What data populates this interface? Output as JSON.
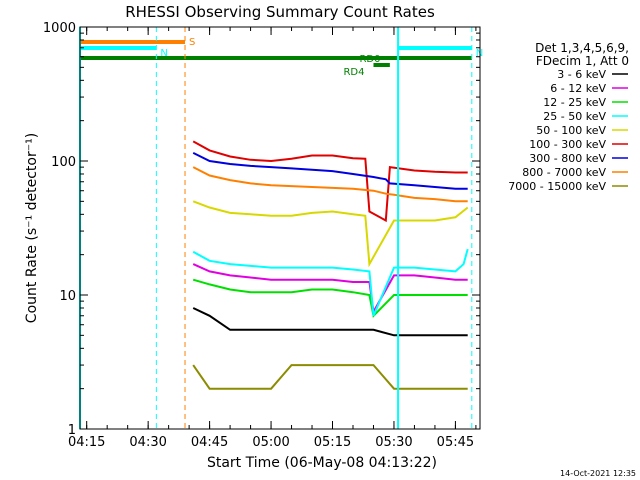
{
  "chart_data": {
    "type": "line",
    "title": "RHESSI Observing Summary Count Rates",
    "xlabel": "Start Time (06-May-08 04:13:22)",
    "ylabel": "Count Rate (s⁻¹ detector⁻¹)",
    "y_scale": "log",
    "ylim": [
      1,
      1000
    ],
    "xlim": [
      "04:13:22",
      "05:51:00"
    ],
    "x_ticks": [
      "04:15",
      "04:30",
      "04:45",
      "05:00",
      "05:15",
      "05:30",
      "05:45"
    ],
    "y_ticks": [
      "1",
      "10",
      "100",
      "1000"
    ],
    "grid": false,
    "legend_placement": "right",
    "legend_header": [
      "Det 1,3,4,5,6,9,",
      "FDecim 1, Att 0"
    ],
    "footer_date": "14-Oct-2021 12:35",
    "series": [
      {
        "name": "3 - 6 keV",
        "color": "#000000",
        "x": [
          "04:41",
          "04:45",
          "04:50",
          "04:55",
          "05:00",
          "05:05",
          "05:10",
          "05:15",
          "05:20",
          "05:25",
          "05:30",
          "05:35",
          "05:40",
          "05:45",
          "05:48"
        ],
        "values": [
          8,
          7,
          5.5,
          5.5,
          5.5,
          5.5,
          5.5,
          5.5,
          5.5,
          5.5,
          5,
          5,
          5,
          5,
          5
        ]
      },
      {
        "name": "6 - 12 keV",
        "color": "#e000e0",
        "x": [
          "04:41",
          "04:45",
          "04:50",
          "04:55",
          "05:00",
          "05:05",
          "05:10",
          "05:15",
          "05:20",
          "05:24",
          "05:25",
          "05:30",
          "05:35",
          "05:40",
          "05:45",
          "05:48"
        ],
        "values": [
          17,
          15,
          14,
          13.5,
          13,
          13,
          13,
          13,
          12.5,
          12.5,
          7.5,
          14,
          14,
          13.5,
          13,
          13
        ]
      },
      {
        "name": "12 - 25 keV",
        "color": "#00e000",
        "x": [
          "04:41",
          "04:45",
          "04:50",
          "04:55",
          "05:00",
          "05:05",
          "05:10",
          "05:15",
          "05:20",
          "05:24",
          "05:25",
          "05:30",
          "05:35",
          "05:40",
          "05:45",
          "05:48"
        ],
        "values": [
          13,
          12,
          11,
          10.5,
          10.5,
          10.5,
          11,
          11,
          10.5,
          10,
          7,
          10,
          10,
          10,
          10,
          10
        ]
      },
      {
        "name": "25 - 50 keV",
        "color": "#00ffff",
        "x": [
          "04:41",
          "04:45",
          "04:50",
          "04:55",
          "05:00",
          "05:05",
          "05:10",
          "05:15",
          "05:20",
          "05:24",
          "05:25",
          "05:30",
          "05:35",
          "05:40",
          "05:45",
          "05:47",
          "05:48"
        ],
        "values": [
          21,
          18,
          17,
          16.5,
          16,
          16,
          16,
          16,
          15.5,
          15,
          7,
          16,
          16,
          15.5,
          15,
          17,
          22
        ]
      },
      {
        "name": "50 - 100 keV",
        "color": "#d8d800",
        "x": [
          "04:41",
          "04:45",
          "04:50",
          "04:55",
          "05:00",
          "05:05",
          "05:10",
          "05:15",
          "05:20",
          "05:23",
          "05:24",
          "05:30",
          "05:35",
          "05:40",
          "05:45",
          "05:48"
        ],
        "values": [
          50,
          45,
          41,
          40,
          39,
          39,
          41,
          42,
          40,
          39,
          17,
          36,
          36,
          36,
          38,
          45
        ]
      },
      {
        "name": "100 - 300 keV",
        "color": "#e00000",
        "x": [
          "04:41",
          "04:45",
          "04:50",
          "04:55",
          "05:00",
          "05:05",
          "05:10",
          "05:15",
          "05:20",
          "05:23",
          "05:24",
          "05:28",
          "05:29",
          "05:35",
          "05:40",
          "05:45",
          "05:48"
        ],
        "values": [
          140,
          120,
          108,
          102,
          100,
          104,
          110,
          110,
          105,
          104,
          42,
          36,
          90,
          85,
          83,
          82,
          82
        ]
      },
      {
        "name": "300 - 800 keV",
        "color": "#0000e0",
        "x": [
          "04:41",
          "04:45",
          "04:50",
          "04:55",
          "05:00",
          "05:05",
          "05:10",
          "05:15",
          "05:20",
          "05:25",
          "05:28",
          "05:29",
          "05:35",
          "05:40",
          "05:45",
          "05:48"
        ],
        "values": [
          115,
          100,
          95,
          92,
          90,
          88,
          86,
          84,
          80,
          76,
          73,
          68,
          66,
          64,
          62,
          62
        ]
      },
      {
        "name": "800 - 7000 keV",
        "color": "#ff8000",
        "x": [
          "04:41",
          "04:45",
          "04:50",
          "04:55",
          "05:00",
          "05:05",
          "05:10",
          "05:15",
          "05:20",
          "05:25",
          "05:28",
          "05:30",
          "05:35",
          "05:40",
          "05:45",
          "05:48"
        ],
        "values": [
          90,
          78,
          72,
          68,
          66,
          65,
          64,
          63,
          62,
          60,
          57,
          56,
          53,
          52,
          50,
          50
        ]
      },
      {
        "name": "7000 - 15000 keV",
        "color": "#8c8c00",
        "x": [
          "04:41",
          "04:45",
          "04:50",
          "04:55",
          "05:00",
          "05:05",
          "05:10",
          "05:15",
          "05:20",
          "05:25",
          "05:30",
          "05:35",
          "05:40",
          "05:45",
          "05:48"
        ],
        "values": [
          3,
          2,
          2,
          2,
          2,
          3,
          3,
          3,
          3,
          3,
          2,
          2,
          2,
          2,
          2
        ]
      }
    ],
    "status_bars": [
      {
        "label": "S",
        "color": "#ff8000",
        "x_start": "04:13:22",
        "x_end": "04:39"
      },
      {
        "label": "N",
        "color": "#00ffff",
        "x_start": "04:13:22",
        "x_end": "04:32"
      },
      {
        "label": "N",
        "color": "#00ffff",
        "x_start": "05:31",
        "x_end": "05:49"
      },
      {
        "label": "",
        "color": "#008000",
        "x_start": "04:13:22",
        "x_end": "05:49"
      },
      {
        "label": "RD0",
        "color": "#008000",
        "x_start": "05:25",
        "x_end": "05:29"
      },
      {
        "label": "RD4",
        "color": "#008000",
        "x_start": "05:25",
        "x_end": "05:29"
      }
    ],
    "vertical_lines": [
      {
        "x": "04:13:22",
        "color": "#00ffff",
        "style": "solid"
      },
      {
        "x": "04:32",
        "color": "#00ffff",
        "style": "dashed"
      },
      {
        "x": "04:39",
        "color": "#ff8000",
        "style": "dashed"
      },
      {
        "x": "05:31",
        "color": "#00ffff",
        "style": "solid"
      },
      {
        "x": "05:49",
        "color": "#00ffff",
        "style": "dashed"
      }
    ]
  }
}
